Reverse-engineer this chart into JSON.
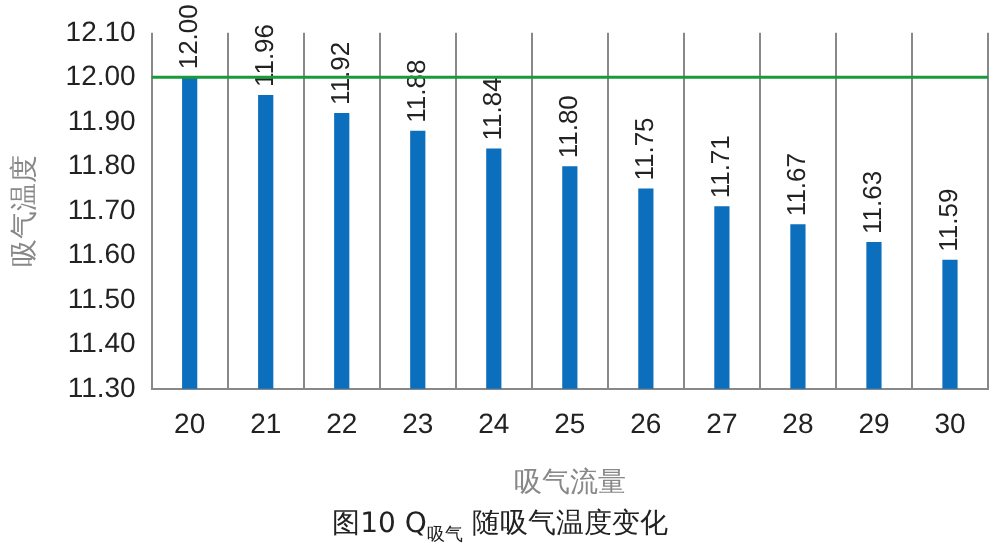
{
  "chart_data": {
    "type": "bar",
    "title": "图10  Q$_{吸气}$ 随吸气温度变化",
    "xlabel": "吸气流量",
    "ylabel": "吸气温度",
    "categories": [
      "20",
      "21",
      "22",
      "23",
      "24",
      "25",
      "26",
      "27",
      "28",
      "29",
      "30"
    ],
    "values": [
      12.0,
      11.96,
      11.92,
      11.88,
      11.84,
      11.8,
      11.75,
      11.71,
      11.67,
      11.63,
      11.59
    ],
    "value_labels": [
      "12.00",
      "11.96",
      "11.92",
      "11.88",
      "11.84",
      "11.80",
      "11.75",
      "11.71",
      "11.67",
      "11.63",
      "11.59"
    ],
    "color": "#0b6fbd",
    "ylim": [
      11.3,
      12.1
    ],
    "yticks": [
      {
        "value": 11.3,
        "label": "11.30"
      },
      {
        "value": 11.4,
        "label": "11.40"
      },
      {
        "value": 11.5,
        "label": "11.50"
      },
      {
        "value": 11.6,
        "label": "11.60"
      },
      {
        "value": 11.7,
        "label": "11.70"
      },
      {
        "value": 11.8,
        "label": "11.80"
      },
      {
        "value": 11.9,
        "label": "11.90"
      },
      {
        "value": 12.0,
        "label": "12.00"
      },
      {
        "value": 12.1,
        "label": "12.10"
      }
    ],
    "ref_lines": [
      {
        "axis": "y",
        "value": 12.0,
        "color": "#1a9a3a"
      }
    ],
    "grid": "x",
    "legend": false
  }
}
